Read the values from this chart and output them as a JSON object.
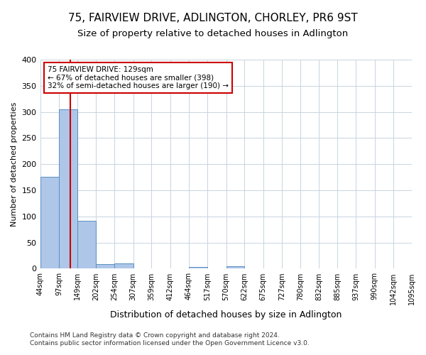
{
  "title": "75, FAIRVIEW DRIVE, ADLINGTON, CHORLEY, PR6 9ST",
  "subtitle": "Size of property relative to detached houses in Adlington",
  "xlabel": "Distribution of detached houses by size in Adlington",
  "ylabel": "Number of detached properties",
  "footer_line1": "Contains HM Land Registry data © Crown copyright and database right 2024.",
  "footer_line2": "Contains public sector information licensed under the Open Government Licence v3.0.",
  "bin_edges": [
    44,
    97,
    149,
    202,
    254,
    307,
    359,
    412,
    464,
    517,
    570,
    622,
    675,
    727,
    780,
    832,
    885,
    937,
    990,
    1042,
    1095
  ],
  "bin_labels": [
    "44sqm",
    "97sqm",
    "149sqm",
    "202sqm",
    "254sqm",
    "307sqm",
    "359sqm",
    "412sqm",
    "464sqm",
    "517sqm",
    "570sqm",
    "622sqm",
    "675sqm",
    "727sqm",
    "780sqm",
    "832sqm",
    "885sqm",
    "937sqm",
    "990sqm",
    "1042sqm",
    "1095sqm"
  ],
  "bar_heights": [
    176,
    305,
    91,
    9,
    10,
    0,
    0,
    0,
    3,
    0,
    4,
    0,
    0,
    0,
    0,
    0,
    0,
    0,
    0,
    0
  ],
  "bar_color": "#aec6e8",
  "bar_edge_color": "#5a8fc2",
  "vline_x": 129,
  "annotation_line1": "75 FAIRVIEW DRIVE: 129sqm",
  "annotation_line2": "← 67% of detached houses are smaller (398)",
  "annotation_line3": "32% of semi-detached houses are larger (190) →",
  "annotation_box_color": "#ffffff",
  "annotation_box_edge": "#cc0000",
  "vline_color": "#cc0000",
  "ylim": [
    0,
    400
  ],
  "yticks": [
    0,
    50,
    100,
    150,
    200,
    250,
    300,
    350,
    400
  ],
  "background_color": "#ffffff",
  "grid_color": "#c8d4e0",
  "title_fontsize": 11,
  "subtitle_fontsize": 9.5,
  "ylabel_fontsize": 8,
  "xlabel_fontsize": 9,
  "tick_fontsize": 7,
  "annotation_fontsize": 7.5,
  "footer_fontsize": 6.5
}
